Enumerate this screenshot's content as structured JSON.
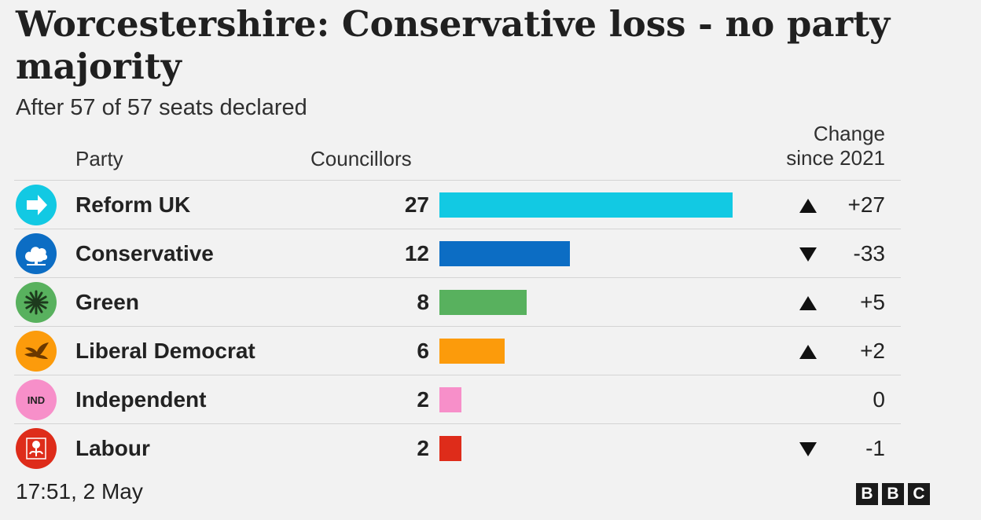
{
  "chart_data": {
    "type": "table",
    "title": "Worcestershire: Conservative loss - no party majority",
    "subtitle": "After 57 of 57 seats declared",
    "columns": {
      "party": "Party",
      "councillors": "Councillors",
      "change_line1": "Change",
      "change_line2": "since 2021"
    },
    "max_value": 27,
    "rows": [
      {
        "party": "Reform UK",
        "seats": 27,
        "change": "+27",
        "direction": "up",
        "color": "#12c9e3",
        "icon": "reform-arrow-icon"
      },
      {
        "party": "Conservative",
        "seats": 12,
        "change": "-33",
        "direction": "down",
        "color": "#0c6dc4",
        "icon": "conservative-tree-icon"
      },
      {
        "party": "Green",
        "seats": 8,
        "change": "+5",
        "direction": "up",
        "color": "#58b15e",
        "icon": "green-sunflower-icon"
      },
      {
        "party": "Liberal Democrat",
        "seats": 6,
        "change": "+2",
        "direction": "up",
        "color": "#fc9b0b",
        "icon": "libdem-bird-icon"
      },
      {
        "party": "Independent",
        "seats": 2,
        "change": "0",
        "direction": "none",
        "color": "#f78fc9",
        "icon": "independent-badge-icon",
        "icon_text": "IND"
      },
      {
        "party": "Labour",
        "seats": 2,
        "change": "-1",
        "direction": "down",
        "color": "#de2c1a",
        "icon": "labour-rose-icon"
      }
    ]
  },
  "footer": {
    "timestamp": "17:51,  2 May",
    "logo_letters": [
      "B",
      "B",
      "C"
    ]
  }
}
